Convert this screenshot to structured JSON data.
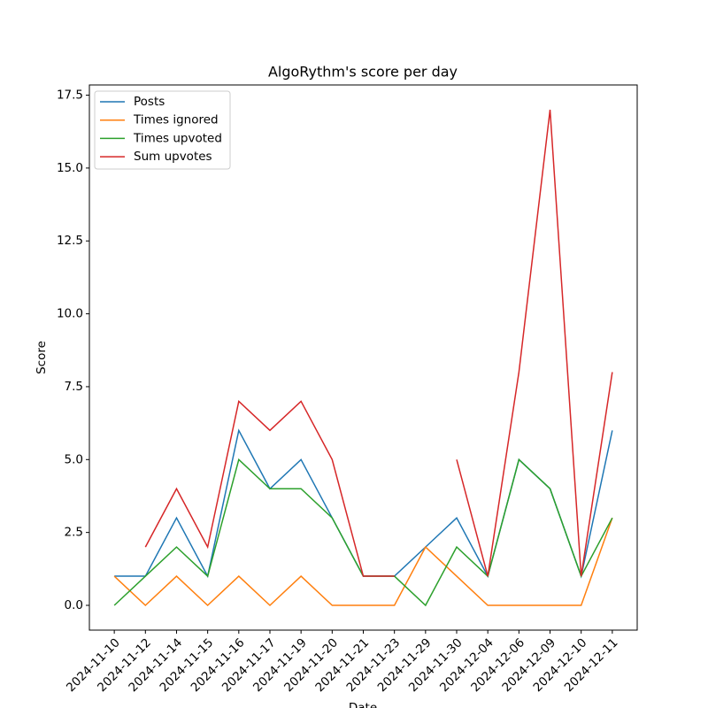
{
  "chart_data": {
    "type": "line",
    "title": "AlgoRythm's score per day",
    "x_label": "Date",
    "y_label": "Score",
    "categories": [
      "2024-11-10",
      "2024-11-12",
      "2024-11-14",
      "2024-11-15",
      "2024-11-16",
      "2024-11-17",
      "2024-11-19",
      "2024-11-20",
      "2024-11-21",
      "2024-11-23",
      "2024-11-29",
      "2024-11-30",
      "2024-12-04",
      "2024-12-06",
      "2024-12-09",
      "2024-12-10",
      "2024-12-11"
    ],
    "series": [
      {
        "name": "Posts",
        "color": "#1f77b4",
        "values": [
          1,
          1,
          3,
          1,
          6,
          4,
          5,
          3,
          1,
          1,
          2,
          3,
          1,
          5,
          4,
          1,
          6
        ]
      },
      {
        "name": "Times ignored",
        "color": "#ff7f0e",
        "values": [
          1,
          0,
          1,
          0,
          1,
          0,
          1,
          0,
          0,
          0,
          2,
          1,
          0,
          0,
          0,
          0,
          3
        ]
      },
      {
        "name": "Times upvoted",
        "color": "#2ca02c",
        "values": [
          0,
          1,
          2,
          1,
          5,
          4,
          4,
          3,
          1,
          1,
          0,
          2,
          1,
          5,
          4,
          1,
          3
        ]
      },
      {
        "name": "Sum upvotes",
        "color": "#d62728",
        "values": [
          null,
          2,
          4,
          2,
          7,
          6,
          7,
          5,
          1,
          1,
          null,
          5,
          1,
          8,
          17,
          1,
          8
        ]
      }
    ],
    "ylim": [
      -0.85,
      17.85
    ],
    "yticks": [
      {
        "value": 0,
        "label": "0.0"
      },
      2.5,
      {
        "value": 5,
        "label": "5.0"
      },
      7.5,
      {
        "value": 10,
        "label": "10.0"
      },
      12.5,
      {
        "value": 15,
        "label": "15.0"
      },
      17.5
    ],
    "grid": false,
    "legend": "upper left"
  }
}
